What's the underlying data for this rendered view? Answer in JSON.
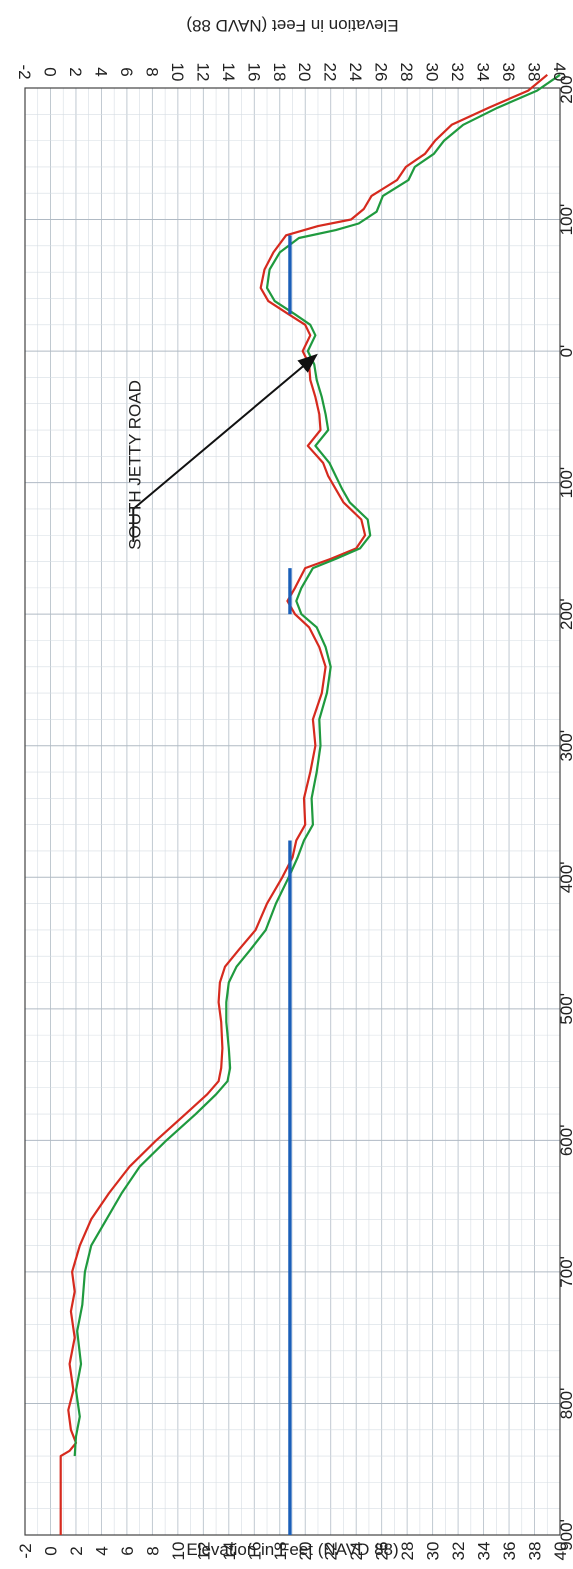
{
  "chart_data": {
    "type": "line",
    "title": "",
    "ylabel": "Elevation in Feet (NAVD 88)",
    "xlabel": "",
    "orientation": "rotated-90-clockwise",
    "x_ticks": [
      "900'",
      "800'",
      "700'",
      "600'",
      "500'",
      "400'",
      "300'",
      "200'",
      "100'",
      "0'",
      "100'",
      "200'"
    ],
    "x_tick_values": [
      -900,
      -800,
      -700,
      -600,
      -500,
      -400,
      -300,
      -200,
      -100,
      0,
      100,
      200
    ],
    "ylim": [
      -2,
      40
    ],
    "y_ticks": [
      -2,
      0,
      2,
      4,
      6,
      8,
      10,
      12,
      14,
      16,
      18,
      20,
      22,
      24,
      26,
      28,
      30,
      32,
      34,
      36,
      38,
      40
    ],
    "grid": true,
    "series": [
      {
        "color": "#d62a1e",
        "points": [
          [
            -900,
            0.8
          ],
          [
            -840,
            0.8
          ],
          [
            -836,
            1.5
          ],
          [
            -830,
            2.0
          ],
          [
            -820,
            1.6
          ],
          [
            -805,
            1.4
          ],
          [
            -790,
            1.8
          ],
          [
            -770,
            1.5
          ],
          [
            -750,
            1.9
          ],
          [
            -730,
            1.6
          ],
          [
            -715,
            1.9
          ],
          [
            -700,
            1.7
          ],
          [
            -680,
            2.3
          ],
          [
            -660,
            3.2
          ],
          [
            -640,
            4.6
          ],
          [
            -620,
            6.2
          ],
          [
            -600,
            8.3
          ],
          [
            -580,
            10.6
          ],
          [
            -565,
            12.3
          ],
          [
            -555,
            13.2
          ],
          [
            -545,
            13.4
          ],
          [
            -530,
            13.5
          ],
          [
            -510,
            13.4
          ],
          [
            -495,
            13.2
          ],
          [
            -480,
            13.3
          ],
          [
            -468,
            13.7
          ],
          [
            -455,
            14.8
          ],
          [
            -440,
            16.1
          ],
          [
            -420,
            17.0
          ],
          [
            -400,
            18.2
          ],
          [
            -385,
            19.0
          ],
          [
            -372,
            19.3
          ],
          [
            -360,
            20.0
          ],
          [
            -340,
            19.9
          ],
          [
            -320,
            20.4
          ],
          [
            -300,
            20.8
          ],
          [
            -280,
            20.6
          ],
          [
            -260,
            21.3
          ],
          [
            -240,
            21.6
          ],
          [
            -225,
            21.1
          ],
          [
            -210,
            20.3
          ],
          [
            -200,
            19.2
          ],
          [
            -190,
            18.6
          ],
          [
            -180,
            19.2
          ],
          [
            -165,
            20.0
          ],
          [
            -158,
            22.0
          ],
          [
            -150,
            24.0
          ],
          [
            -140,
            24.7
          ],
          [
            -128,
            24.4
          ],
          [
            -115,
            23.0
          ],
          [
            -105,
            22.4
          ],
          [
            -95,
            21.8
          ],
          [
            -85,
            21.4
          ],
          [
            -72,
            20.2
          ],
          [
            -60,
            21.2
          ],
          [
            -48,
            21.1
          ],
          [
            -35,
            20.8
          ],
          [
            -22,
            20.4
          ],
          [
            -10,
            20.3
          ],
          [
            0,
            19.8
          ],
          [
            12,
            20.4
          ],
          [
            20,
            20.0
          ],
          [
            28,
            18.7
          ],
          [
            38,
            17.1
          ],
          [
            48,
            16.5
          ],
          [
            62,
            16.8
          ],
          [
            75,
            17.5
          ],
          [
            88,
            18.5
          ],
          [
            95,
            21.0
          ],
          [
            100,
            23.6
          ],
          [
            108,
            24.6
          ],
          [
            118,
            25.2
          ],
          [
            130,
            27.2
          ],
          [
            140,
            27.9
          ],
          [
            150,
            29.4
          ],
          [
            160,
            30.2
          ],
          [
            172,
            31.5
          ],
          [
            185,
            34.4
          ],
          [
            198,
            37.5
          ],
          [
            210,
            39.0
          ]
        ]
      },
      {
        "color": "#1f9a3e",
        "points": [
          [
            -840,
            1.9
          ],
          [
            -825,
            2.0
          ],
          [
            -810,
            2.3
          ],
          [
            -790,
            2.0
          ],
          [
            -770,
            2.4
          ],
          [
            -745,
            2.1
          ],
          [
            -725,
            2.5
          ],
          [
            -700,
            2.7
          ],
          [
            -680,
            3.2
          ],
          [
            -660,
            4.4
          ],
          [
            -640,
            5.6
          ],
          [
            -620,
            7.0
          ],
          [
            -600,
            9.1
          ],
          [
            -580,
            11.4
          ],
          [
            -565,
            13.0
          ],
          [
            -555,
            13.9
          ],
          [
            -545,
            14.1
          ],
          [
            -530,
            14.0
          ],
          [
            -510,
            13.8
          ],
          [
            -495,
            13.8
          ],
          [
            -480,
            14.0
          ],
          [
            -468,
            14.6
          ],
          [
            -455,
            15.7
          ],
          [
            -440,
            16.9
          ],
          [
            -420,
            17.7
          ],
          [
            -400,
            18.7
          ],
          [
            -385,
            19.4
          ],
          [
            -372,
            19.9
          ],
          [
            -360,
            20.6
          ],
          [
            -340,
            20.5
          ],
          [
            -320,
            20.9
          ],
          [
            -300,
            21.2
          ],
          [
            -280,
            21.1
          ],
          [
            -260,
            21.7
          ],
          [
            -240,
            22.0
          ],
          [
            -225,
            21.6
          ],
          [
            -210,
            20.9
          ],
          [
            -200,
            19.7
          ],
          [
            -190,
            19.3
          ],
          [
            -180,
            19.7
          ],
          [
            -165,
            20.6
          ],
          [
            -158,
            22.4
          ],
          [
            -150,
            24.3
          ],
          [
            -140,
            25.1
          ],
          [
            -128,
            24.9
          ],
          [
            -115,
            23.5
          ],
          [
            -105,
            22.9
          ],
          [
            -95,
            22.4
          ],
          [
            -85,
            21.9
          ],
          [
            -72,
            20.8
          ],
          [
            -60,
            21.8
          ],
          [
            -48,
            21.6
          ],
          [
            -35,
            21.3
          ],
          [
            -22,
            20.9
          ],
          [
            -10,
            20.7
          ],
          [
            0,
            20.2
          ],
          [
            12,
            20.8
          ],
          [
            20,
            20.4
          ],
          [
            28,
            19.2
          ],
          [
            38,
            17.6
          ],
          [
            48,
            17.0
          ],
          [
            62,
            17.2
          ],
          [
            75,
            18.0
          ],
          [
            86,
            19.5
          ],
          [
            92,
            22.4
          ],
          [
            97,
            24.2
          ],
          [
            106,
            25.6
          ],
          [
            118,
            26.1
          ],
          [
            130,
            28.1
          ],
          [
            140,
            28.6
          ],
          [
            150,
            30.1
          ],
          [
            160,
            30.9
          ],
          [
            172,
            32.4
          ],
          [
            185,
            35.1
          ],
          [
            198,
            38.2
          ],
          [
            210,
            40.0
          ]
        ]
      },
      {
        "color": "#1b5fb8",
        "segments": [
          [
            [
              -900,
              18.8
            ],
            [
              -372,
              18.8
            ]
          ],
          [
            [
              -200,
              18.8
            ],
            [
              -165,
              18.8
            ]
          ],
          [
            [
              28,
              18.8
            ],
            [
              88,
              18.8
            ]
          ]
        ]
      }
    ],
    "annotations": [
      {
        "text": "SOUTH JETTY ROAD",
        "x": -120,
        "y": 6.5,
        "arrow_to": [
          0,
          20.4
        ]
      }
    ]
  }
}
